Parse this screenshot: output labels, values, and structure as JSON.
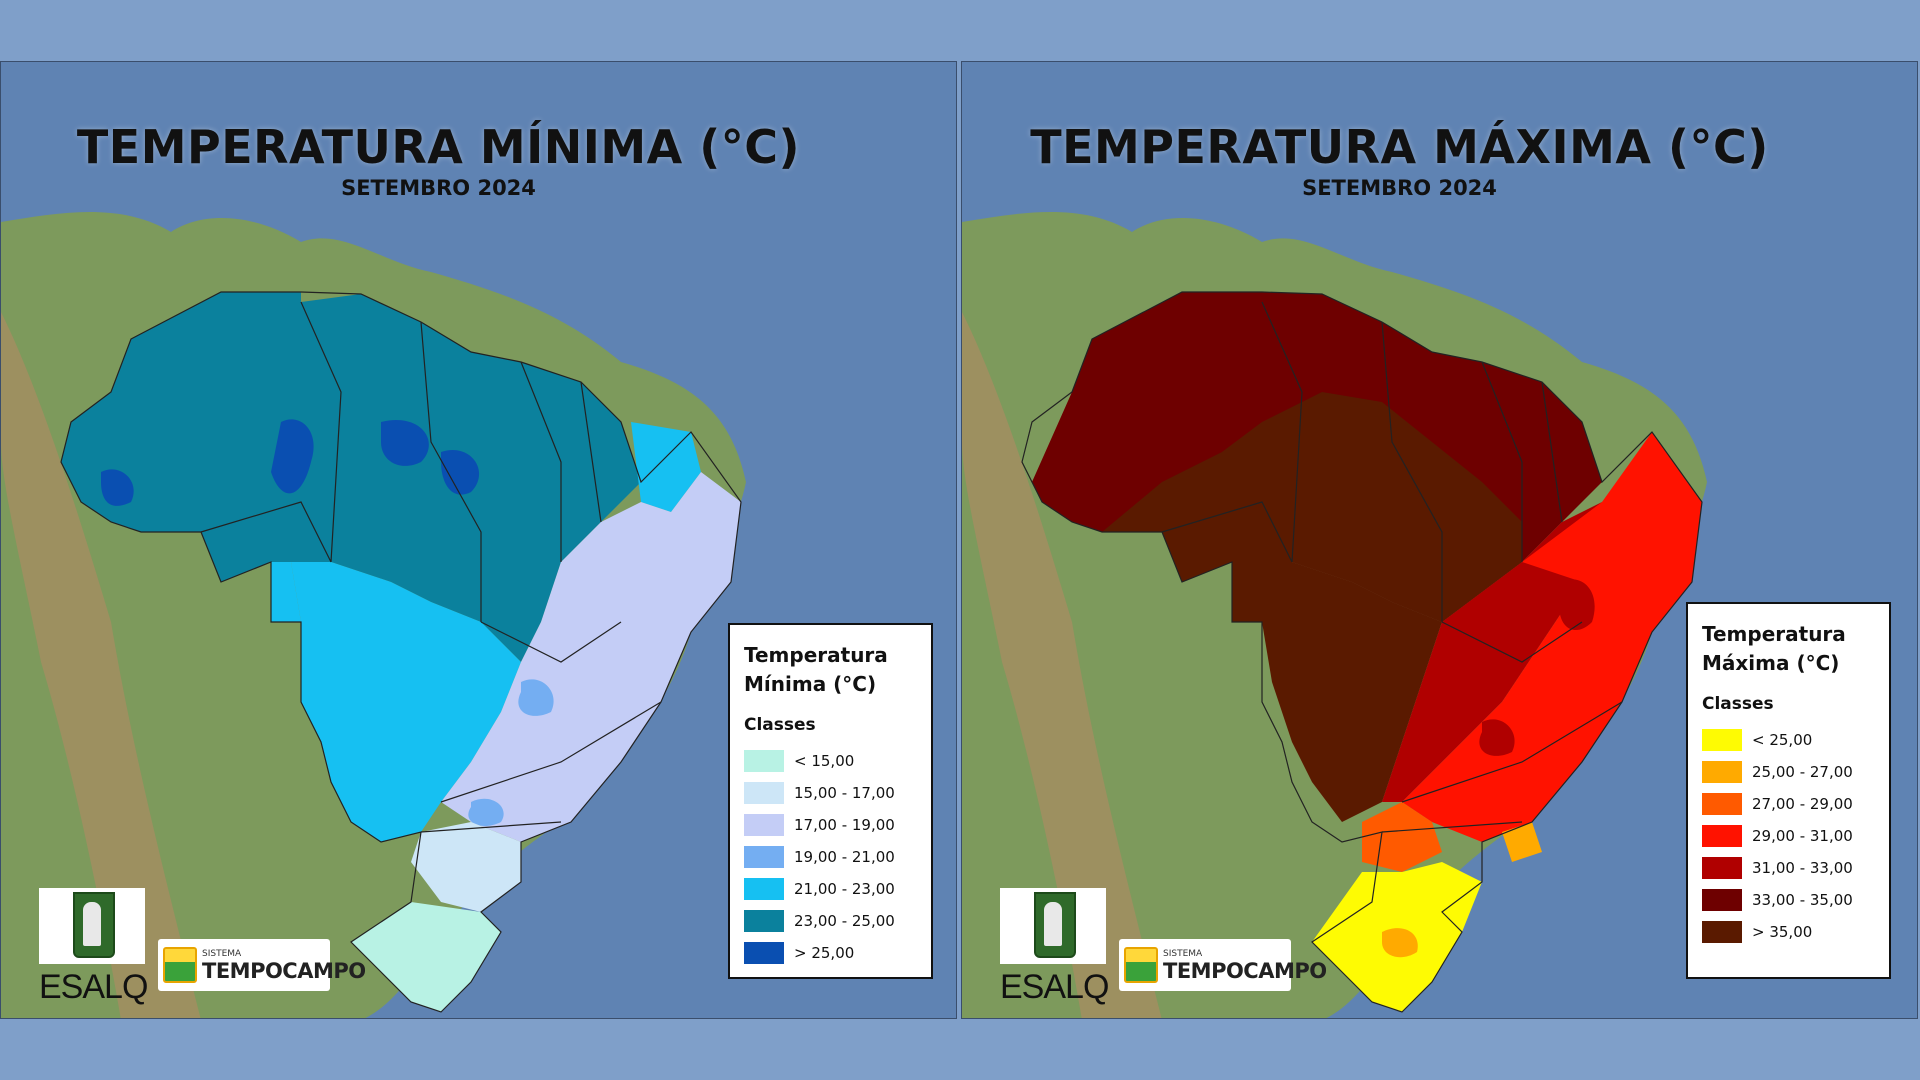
{
  "maps": [
    {
      "title": "TEMPERATURA MÍNIMA (°C)",
      "subtitle": "SETEMBRO 2024",
      "legend": {
        "title_line1": "Temperatura",
        "title_line2": "Mínima (°C)",
        "classes_label": "Classes",
        "classes": [
          {
            "label": "< 15,00",
            "color": "#b8f2e4"
          },
          {
            "label": "15,00 - 17,00",
            "color": "#cde6f7"
          },
          {
            "label": "17,00 - 19,00",
            "color": "#c4cdf6"
          },
          {
            "label": "19,00 - 21,00",
            "color": "#74aef2"
          },
          {
            "label": "21,00 - 23,00",
            "color": "#16c0f2"
          },
          {
            "label": "23,00 - 25,00",
            "color": "#0b819d"
          },
          {
            "label": "> 25,00",
            "color": "#0a4fb1"
          }
        ]
      }
    },
    {
      "title": "TEMPERATURA MÁXIMA (°C)",
      "subtitle": "SETEMBRO 2024",
      "legend": {
        "title_line1": "Temperatura",
        "title_line2": "Máxima (°C)",
        "classes_label": "Classes",
        "classes": [
          {
            "label": "< 25,00",
            "color": "#fefb03"
          },
          {
            "label": "25,00 - 27,00",
            "color": "#ffaa00"
          },
          {
            "label": "27,00 - 29,00",
            "color": "#ff5a00"
          },
          {
            "label": "29,00 - 31,00",
            "color": "#ff1200"
          },
          {
            "label": "31,00 - 33,00",
            "color": "#b00000"
          },
          {
            "label": "33,00 - 35,00",
            "color": "#6e0000"
          },
          {
            "label": "> 35,00",
            "color": "#5a1a00"
          }
        ]
      }
    }
  ],
  "logos": {
    "esalq": "ESALQ",
    "tempocampo_small": "SISTEMA",
    "tempocampo_big": "TEMPOCAMPO"
  }
}
